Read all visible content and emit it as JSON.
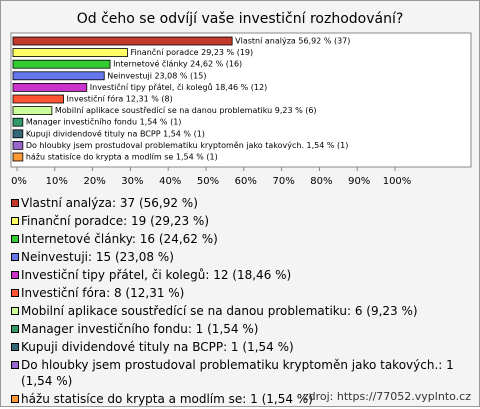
{
  "chart_data": {
    "type": "bar",
    "orientation": "horizontal",
    "title": "Od čeho se odvíjí vaše investiční rozhodování?",
    "values": [
      56.92,
      29.23,
      24.62,
      23.08,
      18.46,
      12.31,
      9.23,
      1.54,
      1.54,
      1.54,
      1.54
    ],
    "value_labels": [
      "Vlastní analýza 56,92 % (37)",
      "Finanční poradce 29,23 % (19)",
      "Internetové články 24,62 % (16)",
      "Neinvestuji 23,08 % (15)",
      "Investiční tipy přátel, či kolegů 18,46 % (12)",
      "Investiční fóra 12,31 % (8)",
      "Mobilní aplikace soustředící se na danou problematiku 9,23 % (6)",
      "Manager investičního fondu 1,54 % (1)",
      "Kupuji dividendové tituly na BCPP 1,54 % (1)",
      "Do hloubky jsem prostudoval problematiku kryptoměn jako takových. 1,54 % (1)",
      "hážu statisíce do krypta a modlím se 1,54 % (1)"
    ],
    "colors": [
      "#c0392b",
      "#ffff66",
      "#33cc33",
      "#6677ee",
      "#cc33cc",
      "#ff5533",
      "#ccff99",
      "#339966",
      "#336677",
      "#9966cc",
      "#ff9933"
    ],
    "legend_labels": [
      "Vlastní analýza: 37 (56,92 %)",
      "Finanční poradce: 19 (29,23 %)",
      "Internetové články: 16 (24,62 %)",
      "Neinvestuji: 15 (23,08 %)",
      "Investiční tipy přátel, či kolegů: 12 (18,46 %)",
      "Investiční fóra: 8 (12,31 %)",
      "Mobilní aplikace soustředící se na danou problematiku: 6 (9,23 %)",
      "Manager investičního fondu: 1 (1,54 %)",
      "Kupuji dividendové tituly na BCPP: 1 (1,54 %)",
      "Do hloubky jsem prostudoval problematiku kryptoměn jako takových.: 1 (1,54 %)",
      "hážu statisíce do krypta a modlím se: 1 (1,54 %)"
    ],
    "xlim": [
      0,
      100
    ],
    "xticks": [
      {
        "value": 0,
        "label": "0%"
      },
      {
        "value": 10,
        "label": "10%"
      },
      {
        "value": 20,
        "label": "20%"
      },
      {
        "value": 30,
        "label": "30%"
      },
      {
        "value": 40,
        "label": "40%"
      },
      {
        "value": 50,
        "label": "50%"
      },
      {
        "value": 60,
        "label": "60%"
      },
      {
        "value": 70,
        "label": "70%"
      },
      {
        "value": 80,
        "label": "80%"
      },
      {
        "value": 90,
        "label": "90%"
      },
      {
        "value": 100,
        "label": "100%"
      }
    ],
    "source": "zdroj: https://77052.vyplnto.cz"
  }
}
